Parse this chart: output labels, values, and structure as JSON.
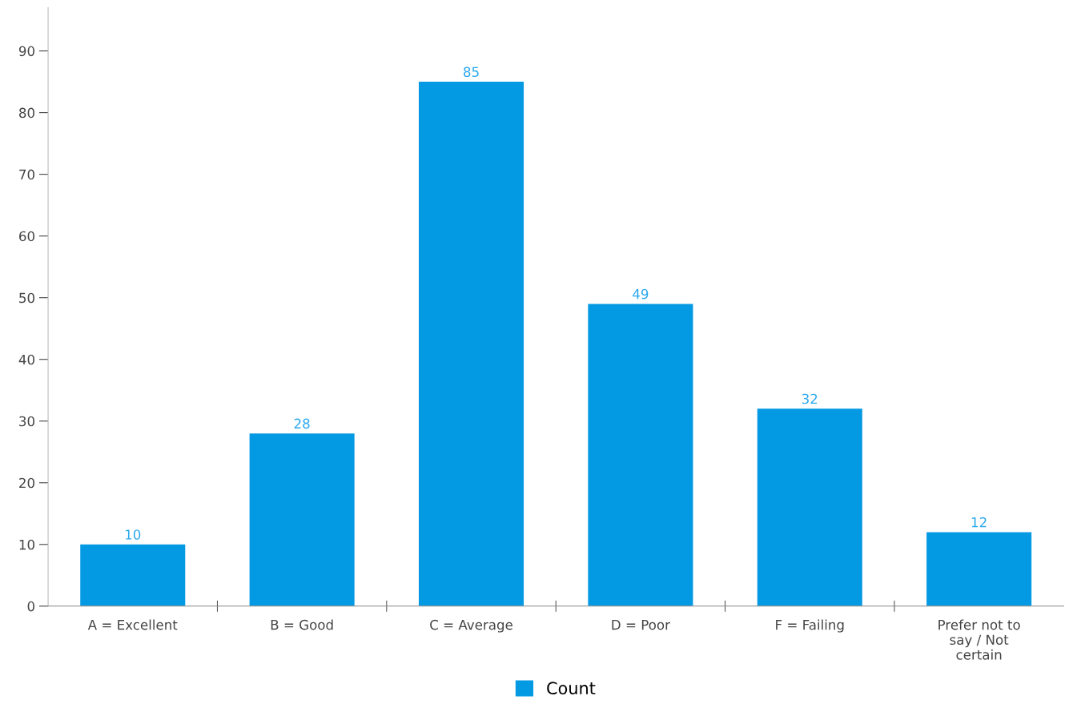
{
  "chart_data": {
    "type": "bar",
    "categories": [
      "A = Excellent",
      "B = Good",
      "C = Average",
      "D = Poor",
      "F = Failing",
      "Prefer not to\nsay / Not\ncertain"
    ],
    "series": [
      {
        "name": "Count",
        "color": "#0499e3",
        "values": [
          10,
          28,
          85,
          49,
          32,
          12
        ]
      }
    ],
    "ylim": [
      0,
      97
    ],
    "yticks": [
      0,
      10,
      20,
      30,
      40,
      50,
      60,
      70,
      80,
      90
    ],
    "grid": false,
    "legend": "bottom",
    "data_labels": true
  }
}
